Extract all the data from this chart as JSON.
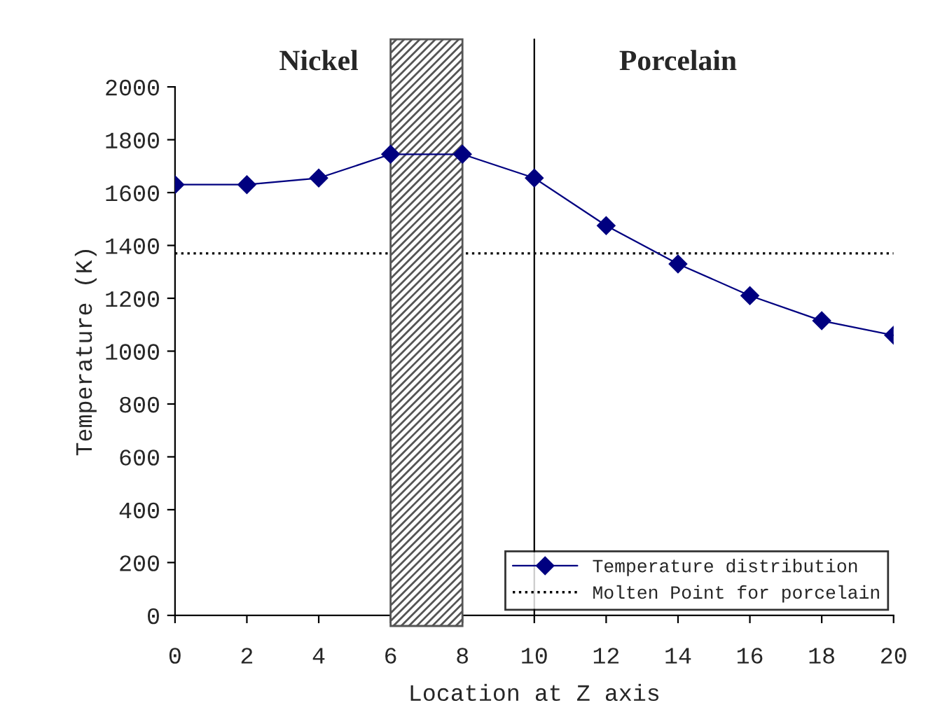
{
  "chart_data": {
    "type": "line",
    "xlabel": "Location at Z axis",
    "ylabel": "Temperature (K)",
    "x": [
      0,
      2,
      4,
      6,
      8,
      10,
      12,
      14,
      16,
      18,
      20
    ],
    "series": [
      {
        "name": "Temperature distribution",
        "color": "#000080",
        "values": [
          1630,
          1630,
          1655,
          1745,
          1745,
          1655,
          1475,
          1330,
          1210,
          1115,
          1060
        ]
      }
    ],
    "xlim": [
      0,
      20
    ],
    "xticks": [
      0,
      2,
      4,
      6,
      8,
      10,
      12,
      14,
      16,
      18,
      20
    ],
    "ylim": [
      0,
      2000
    ],
    "yticks": [
      0,
      200,
      400,
      600,
      800,
      1000,
      1200,
      1400,
      1600,
      1800,
      2000
    ],
    "ref_lines": [
      {
        "axis": "y",
        "value": 1370,
        "label": "Molten Point for porcelain",
        "color": "#000000",
        "line_style": "dotted"
      },
      {
        "axis": "x",
        "value": 10,
        "color": "#000000",
        "line_style": "solid"
      }
    ],
    "bands": [
      {
        "axis": "x",
        "from": 6,
        "to": 8,
        "color": "#555555"
      }
    ],
    "annotations": [
      "Nickel",
      "Porcelain"
    ],
    "marker": "diamond",
    "line_style": "solid",
    "grid": false,
    "legend": "bottom right"
  }
}
